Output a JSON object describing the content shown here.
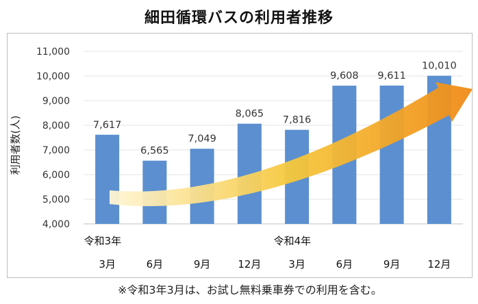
{
  "chart_data": {
    "type": "bar",
    "title": "細田循環バスの利用者推移",
    "ylabel": "利用者数(人)",
    "ylim": [
      4000,
      11000
    ],
    "yticks": [
      4000,
      5000,
      6000,
      7000,
      8000,
      9000,
      10000,
      11000
    ],
    "ytick_labels": [
      "4,000",
      "5,000",
      "6,000",
      "7,000",
      "8,000",
      "9,000",
      "10,000",
      "11,000"
    ],
    "categories": [
      "3月",
      "6月",
      "9月",
      "12月",
      "3月",
      "6月",
      "9月",
      "12月"
    ],
    "year_labels": [
      {
        "label": "令和3年",
        "index": 0
      },
      {
        "label": "令和4年",
        "index": 4
      }
    ],
    "values": [
      7617,
      6565,
      7049,
      8065,
      7816,
      9608,
      9611,
      10010
    ],
    "value_labels": [
      "7,617",
      "6,565",
      "7,049",
      "8,065",
      "7,816",
      "9,608",
      "9,611",
      "10,010"
    ],
    "bar_color": "#5b8fd0",
    "arrow_colors": [
      "#fff6d6",
      "#f6c83c",
      "#f08a17"
    ],
    "grid": true,
    "legend": "none"
  },
  "footnote": "※令和3年3月は、お試し無料乗車券での利用を含む。"
}
